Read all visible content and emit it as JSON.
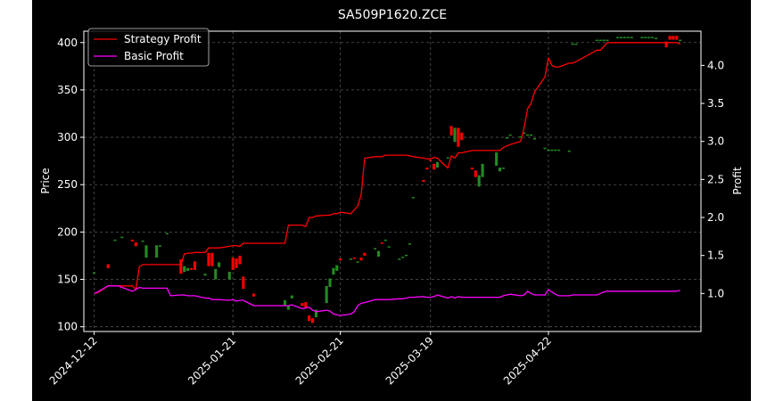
{
  "chart_data": {
    "type": "candlestick+line",
    "title": "SA509P1620.ZCE",
    "ylabel_left": "Price",
    "ylabel_right": "Profit",
    "ylim_left": [
      95,
      412
    ],
    "ylim_right": [
      0.5,
      4.45
    ],
    "yticks_left": [
      100,
      150,
      200,
      250,
      300,
      350,
      400
    ],
    "yticks_right": [
      1.0,
      1.5,
      2.0,
      2.5,
      3.0,
      3.5,
      4.0
    ],
    "yticks_right_labels": [
      "1.0",
      "1.5",
      "2.0",
      "2.5",
      "3.0",
      "3.5",
      "4.0"
    ],
    "xlim": [
      "2024-12-09",
      "2025-06-05"
    ],
    "xticks": [
      "2024-12-12",
      "2025-01-21",
      "2025-02-21",
      "2025-03-19",
      "2025-04-22"
    ],
    "grid": true,
    "legend_position": "top-left",
    "colors": {
      "background": "#000000",
      "up": "#228b22",
      "down": "#ff0000",
      "strategy": "#ff0000",
      "basic": "#ff00ff",
      "grid": "#555555",
      "text": "#ffffff"
    },
    "series": [
      {
        "name": "Strategy Profit",
        "axis": "right",
        "x": [
          "2024-12-12",
          "2024-12-13",
          "2024-12-16",
          "2024-12-17",
          "2024-12-18",
          "2024-12-19",
          "2024-12-20",
          "2024-12-23",
          "2024-12-24",
          "2024-12-25",
          "2024-12-26",
          "2024-12-27",
          "2024-12-30",
          "2024-12-31",
          "2025-01-02",
          "2025-01-03",
          "2025-01-06",
          "2025-01-07",
          "2025-01-08",
          "2025-01-09",
          "2025-01-10",
          "2025-01-13",
          "2025-01-14",
          "2025-01-15",
          "2025-01-16",
          "2025-01-17",
          "2025-01-20",
          "2025-01-21",
          "2025-01-22",
          "2025-01-23",
          "2025-01-24",
          "2025-01-27",
          "2025-02-05",
          "2025-02-06",
          "2025-02-07",
          "2025-02-10",
          "2025-02-11",
          "2025-02-12",
          "2025-02-13",
          "2025-02-14",
          "2025-02-17",
          "2025-02-18",
          "2025-02-19",
          "2025-02-20",
          "2025-02-21",
          "2025-02-24",
          "2025-02-25",
          "2025-02-26",
          "2025-02-27",
          "2025-02-28",
          "2025-03-03",
          "2025-03-04",
          "2025-03-05",
          "2025-03-06",
          "2025-03-07",
          "2025-03-10",
          "2025-03-11",
          "2025-03-12",
          "2025-03-13",
          "2025-03-14",
          "2025-03-17",
          "2025-03-18",
          "2025-03-19",
          "2025-03-20",
          "2025-03-21",
          "2025-03-24",
          "2025-03-25",
          "2025-03-26",
          "2025-03-27",
          "2025-03-28",
          "2025-03-31",
          "2025-04-01",
          "2025-04-02",
          "2025-04-03",
          "2025-04-07",
          "2025-04-08",
          "2025-04-09",
          "2025-04-10",
          "2025-04-11",
          "2025-04-14",
          "2025-04-15",
          "2025-04-16",
          "2025-04-17",
          "2025-04-18",
          "2025-04-21",
          "2025-04-22",
          "2025-04-23",
          "2025-04-24",
          "2025-04-25",
          "2025-04-28",
          "2025-04-29",
          "2025-04-30",
          "2025-05-06",
          "2025-05-07",
          "2025-05-08",
          "2025-05-09",
          "2025-05-12",
          "2025-05-13",
          "2025-05-14",
          "2025-05-15",
          "2025-05-16",
          "2025-05-19",
          "2025-05-20",
          "2025-05-21",
          "2025-05-22",
          "2025-05-23",
          "2025-05-26",
          "2025-05-27",
          "2025-05-28",
          "2025-05-29",
          "2025-05-30"
        ],
        "values": [
          1.0,
          1.01,
          1.1,
          1.1,
          1.1,
          1.1,
          1.1,
          1.1,
          1.05,
          1.35,
          1.38,
          1.38,
          1.38,
          1.38,
          1.38,
          1.38,
          1.38,
          1.52,
          1.53,
          1.53,
          1.54,
          1.54,
          1.6,
          1.6,
          1.6,
          1.6,
          1.62,
          1.63,
          1.63,
          1.62,
          1.66,
          1.66,
          1.66,
          1.9,
          1.9,
          1.9,
          1.88,
          2.0,
          2.0,
          2.02,
          2.03,
          2.03,
          2.05,
          2.05,
          2.07,
          2.05,
          2.1,
          2.15,
          2.3,
          2.78,
          2.8,
          2.8,
          2.8,
          2.82,
          2.82,
          2.82,
          2.82,
          2.82,
          2.81,
          2.8,
          2.78,
          2.77,
          2.77,
          2.79,
          2.78,
          2.65,
          2.81,
          2.78,
          2.85,
          2.85,
          2.88,
          2.88,
          2.88,
          2.88,
          2.88,
          2.88,
          2.92,
          2.94,
          2.96,
          3.0,
          3.18,
          3.43,
          3.5,
          3.65,
          3.85,
          4.1,
          4.0,
          3.98,
          3.98,
          4.03,
          4.03,
          4.05,
          4.2,
          4.2,
          4.25,
          4.3,
          4.3,
          4.3,
          4.3,
          4.3,
          4.3,
          4.3,
          4.3,
          4.3,
          4.3,
          4.3,
          4.3,
          4.3,
          4.3,
          4.3,
          4.28
        ]
      },
      {
        "name": "Basic Profit",
        "axis": "right",
        "x": [
          "2024-12-12",
          "2024-12-13",
          "2024-12-16",
          "2024-12-17",
          "2024-12-18",
          "2024-12-19",
          "2024-12-20",
          "2024-12-23",
          "2024-12-24",
          "2024-12-25",
          "2024-12-26",
          "2024-12-27",
          "2024-12-30",
          "2024-12-31",
          "2025-01-02",
          "2025-01-03",
          "2025-01-06",
          "2025-01-07",
          "2025-01-08",
          "2025-01-09",
          "2025-01-10",
          "2025-01-13",
          "2025-01-14",
          "2025-01-15",
          "2025-01-16",
          "2025-01-17",
          "2025-01-20",
          "2025-01-21",
          "2025-01-22",
          "2025-01-23",
          "2025-01-24",
          "2025-01-27",
          "2025-02-05",
          "2025-02-06",
          "2025-02-07",
          "2025-02-10",
          "2025-02-11",
          "2025-02-12",
          "2025-02-13",
          "2025-02-14",
          "2025-02-17",
          "2025-02-18",
          "2025-02-19",
          "2025-02-20",
          "2025-02-21",
          "2025-02-24",
          "2025-02-25",
          "2025-02-26",
          "2025-02-27",
          "2025-02-28",
          "2025-03-03",
          "2025-03-04",
          "2025-03-05",
          "2025-03-06",
          "2025-03-07",
          "2025-03-10",
          "2025-03-11",
          "2025-03-12",
          "2025-03-13",
          "2025-03-14",
          "2025-03-17",
          "2025-03-18",
          "2025-03-19",
          "2025-03-20",
          "2025-03-21",
          "2025-03-24",
          "2025-03-25",
          "2025-03-26",
          "2025-03-27",
          "2025-03-28",
          "2025-03-31",
          "2025-04-01",
          "2025-04-02",
          "2025-04-03",
          "2025-04-07",
          "2025-04-08",
          "2025-04-09",
          "2025-04-10",
          "2025-04-11",
          "2025-04-14",
          "2025-04-15",
          "2025-04-16",
          "2025-04-17",
          "2025-04-18",
          "2025-04-21",
          "2025-04-22",
          "2025-04-23",
          "2025-04-24",
          "2025-04-25",
          "2025-04-28",
          "2025-04-29",
          "2025-04-30",
          "2025-05-06",
          "2025-05-07",
          "2025-05-08",
          "2025-05-09",
          "2025-05-12",
          "2025-05-13",
          "2025-05-14",
          "2025-05-15",
          "2025-05-16",
          "2025-05-19",
          "2025-05-20",
          "2025-05-21",
          "2025-05-22",
          "2025-05-23",
          "2025-05-26",
          "2025-05-27",
          "2025-05-28",
          "2025-05-29",
          "2025-05-30"
        ],
        "values": [
          1.0,
          1.02,
          1.1,
          1.1,
          1.1,
          1.1,
          1.08,
          1.03,
          1.05,
          1.08,
          1.07,
          1.07,
          1.07,
          1.07,
          1.07,
          0.97,
          0.98,
          0.98,
          0.97,
          0.97,
          0.97,
          0.94,
          0.94,
          0.92,
          0.92,
          0.92,
          0.91,
          0.92,
          0.9,
          0.91,
          0.91,
          0.84,
          0.84,
          0.84,
          0.85,
          0.8,
          0.81,
          0.82,
          0.78,
          0.76,
          0.78,
          0.77,
          0.73,
          0.72,
          0.71,
          0.73,
          0.76,
          0.84,
          0.87,
          0.88,
          0.92,
          0.92,
          0.92,
          0.92,
          0.92,
          0.93,
          0.93,
          0.94,
          0.95,
          0.95,
          0.96,
          0.95,
          0.95,
          0.96,
          0.98,
          0.94,
          0.96,
          0.94,
          0.96,
          0.95,
          0.95,
          0.95,
          0.95,
          0.95,
          0.95,
          0.95,
          0.97,
          0.98,
          0.99,
          0.97,
          0.98,
          1.03,
          1.0,
          0.98,
          0.98,
          1.05,
          1.02,
          0.99,
          0.97,
          0.97,
          0.98,
          0.98,
          0.98,
          1.0,
          1.02,
          1.03,
          1.03,
          1.03,
          1.03,
          1.03,
          1.03,
          1.03,
          1.03,
          1.03,
          1.03,
          1.03,
          1.03,
          1.03,
          1.03,
          1.03,
          1.04
        ]
      }
    ],
    "candles": {
      "axis": "left",
      "x": [
        "2024-12-12",
        "2024-12-16",
        "2024-12-18",
        "2024-12-20",
        "2024-12-23",
        "2024-12-24",
        "2024-12-26",
        "2024-12-27",
        "2024-12-30",
        "2024-12-31",
        "2025-01-02",
        "2025-01-06",
        "2025-01-07",
        "2025-01-08",
        "2025-01-09",
        "2025-01-10",
        "2025-01-13",
        "2025-01-14",
        "2025-01-15",
        "2025-01-16",
        "2025-01-17",
        "2025-01-20",
        "2025-01-21",
        "2025-01-22",
        "2025-01-23",
        "2025-01-24",
        "2025-01-27",
        "2025-02-05",
        "2025-02-06",
        "2025-02-07",
        "2025-02-10",
        "2025-02-11",
        "2025-02-12",
        "2025-02-13",
        "2025-02-14",
        "2025-02-17",
        "2025-02-18",
        "2025-02-19",
        "2025-02-20",
        "2025-02-21",
        "2025-02-24",
        "2025-02-25",
        "2025-02-26",
        "2025-02-27",
        "2025-02-28",
        "2025-03-03",
        "2025-03-04",
        "2025-03-05",
        "2025-03-06",
        "2025-03-07",
        "2025-03-10",
        "2025-03-11",
        "2025-03-12",
        "2025-03-13",
        "2025-03-14",
        "2025-03-17",
        "2025-03-18",
        "2025-03-19",
        "2025-03-20",
        "2025-03-21",
        "2025-03-24",
        "2025-03-25",
        "2025-03-26",
        "2025-03-27",
        "2025-03-28",
        "2025-03-31",
        "2025-04-01",
        "2025-04-02",
        "2025-04-03",
        "2025-04-07",
        "2025-04-08",
        "2025-04-09",
        "2025-04-10",
        "2025-04-11",
        "2025-04-14",
        "2025-04-15",
        "2025-04-16",
        "2025-04-17",
        "2025-04-18",
        "2025-04-21",
        "2025-04-22",
        "2025-04-23",
        "2025-04-24",
        "2025-04-25",
        "2025-04-28",
        "2025-04-29",
        "2025-04-30",
        "2025-05-06",
        "2025-05-07",
        "2025-05-08",
        "2025-05-09",
        "2025-05-12",
        "2025-05-13",
        "2025-05-14",
        "2025-05-15",
        "2025-05-16",
        "2025-05-19",
        "2025-05-20",
        "2025-05-21",
        "2025-05-22",
        "2025-05-23",
        "2025-05-26",
        "2025-05-27",
        "2025-05-28",
        "2025-05-29",
        "2025-05-30"
      ],
      "open": [
        156.5,
        166,
        191,
        194,
        192,
        189,
        190,
        173,
        173,
        185,
        199,
        171,
        158,
        159,
        162,
        169,
        154,
        178,
        178,
        150,
        163,
        150,
        173,
        172,
        175,
        153,
        135,
        122,
        118,
        130,
        125,
        126,
        112,
        109,
        110,
        125,
        142,
        155,
        159,
        172,
        172,
        173,
        169,
        173,
        178,
        183,
        174,
        189,
        192,
        185,
        172,
        174,
        176,
        188,
        237,
        255,
        268,
        276,
        272,
        268,
        279,
        312,
        295,
        310,
        305,
        268,
        265,
        248,
        258,
        270,
        264,
        268,
        300,
        303,
        301,
        305,
        303,
        303,
        299,
        289,
        287,
        287,
        287,
        287,
        286,
        399,
        399,
        403,
        403,
        403,
        403,
        406,
        406,
        406,
        406,
        406,
        406,
        406,
        406,
        406,
        405,
        401,
        407,
        407,
        407,
        403
      ],
      "close": [
        157.5,
        162,
        192,
        195,
        190,
        185,
        191,
        186,
        186,
        186,
        199,
        156,
        164,
        162,
        160,
        160,
        156,
        164,
        164,
        161,
        168,
        158,
        160,
        162,
        166,
        140,
        132,
        128,
        122,
        133,
        122,
        120,
        106,
        104,
        118,
        143,
        151,
        162,
        165,
        170,
        172,
        172,
        169,
        170,
        175,
        183,
        180,
        188,
        192,
        185,
        172,
        174,
        176,
        188,
        237,
        253,
        266,
        275,
        266,
        274,
        279,
        302,
        310,
        290,
        297,
        266,
        258,
        260,
        272,
        284,
        268,
        268,
        300,
        303,
        301,
        305,
        303,
        303,
        299,
        289,
        287,
        287,
        287,
        287,
        286,
        399,
        399,
        403,
        403,
        403,
        403,
        406,
        406,
        406,
        406,
        406,
        406,
        406,
        406,
        406,
        405,
        395,
        403,
        403,
        403,
        403
      ]
    }
  }
}
